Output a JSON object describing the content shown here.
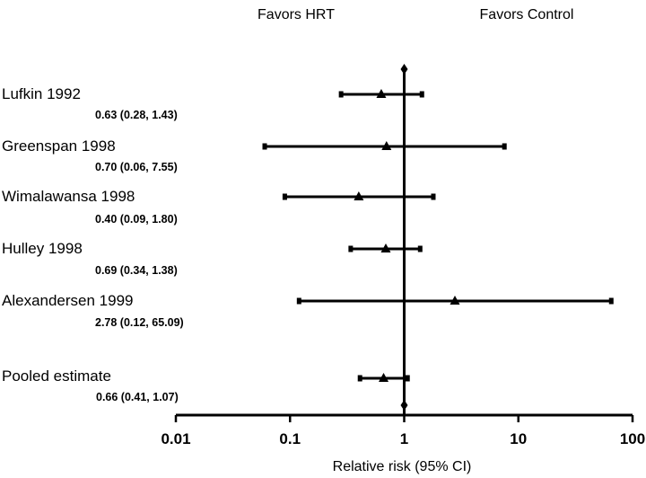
{
  "chart_data": {
    "type": "forest",
    "scale": "log",
    "xlim": [
      0.01,
      100
    ],
    "xticks": [
      0.01,
      0.1,
      1,
      10,
      100
    ],
    "xtick_labels": [
      "0.01",
      "0.1",
      "1",
      "10",
      "100"
    ],
    "xlabel": "Relative risk (95% CI)",
    "reference_value": 1,
    "header_left": "Favors HRT",
    "header_right": "Favors Control",
    "studies": [
      {
        "name": "Lufkin 1992",
        "rr": 0.63,
        "lo": 0.28,
        "hi": 1.43,
        "label": "0.63 (0.28, 1.43)"
      },
      {
        "name": "Greenspan 1998",
        "rr": 0.7,
        "lo": 0.06,
        "hi": 7.55,
        "label": "0.70 (0.06, 7.55)"
      },
      {
        "name": "Wimalawansa 1998",
        "rr": 0.4,
        "lo": 0.09,
        "hi": 1.8,
        "label": "0.40 (0.09, 1.80)"
      },
      {
        "name": "Hulley 1998",
        "rr": 0.69,
        "lo": 0.34,
        "hi": 1.38,
        "label": "0.69 (0.34, 1.38)"
      },
      {
        "name": "Alexandersen 1999",
        "rr": 2.78,
        "lo": 0.12,
        "hi": 65.09,
        "label": "2.78 (0.12, 65.09)"
      }
    ],
    "pooled": {
      "name": "Pooled estimate",
      "rr": 0.66,
      "lo": 0.41,
      "hi": 1.07,
      "label": "0.66 (0.41, 1.07)"
    }
  }
}
